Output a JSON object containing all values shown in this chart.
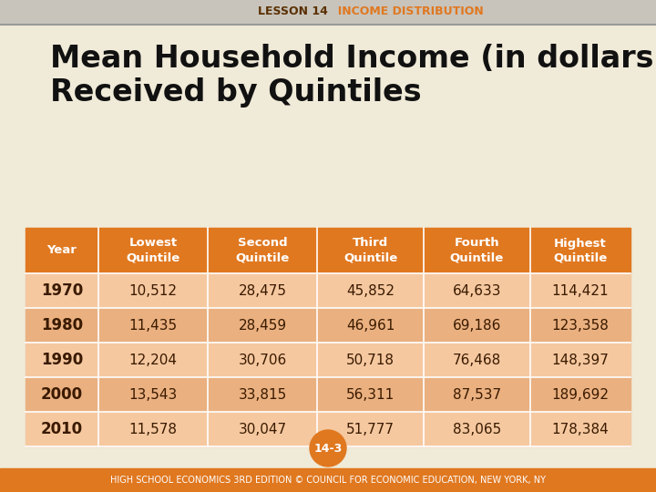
{
  "lesson_label": "LESSON 14",
  "lesson_topic": "  INCOME DISTRIBUTION",
  "title_line1": "Mean Household Income (in dollars)",
  "title_line2": "Received by Quintiles",
  "header_row": [
    "Year",
    "Lowest\nQuintile",
    "Second\nQuintile",
    "Third\nQuintile",
    "Fourth\nQuintile",
    "Highest\nQuintile"
  ],
  "rows": [
    [
      "1970",
      "10,512",
      "28,475",
      "45,852",
      "64,633",
      "114,421"
    ],
    [
      "1980",
      "11,435",
      "28,459",
      "46,961",
      "69,186",
      "123,358"
    ],
    [
      "1990",
      "12,204",
      "30,706",
      "50,718",
      "76,468",
      "148,397"
    ],
    [
      "2000",
      "13,543",
      "33,815",
      "56,311",
      "87,537",
      "189,692"
    ],
    [
      "2010",
      "11,578",
      "30,047",
      "51,777",
      "83,065",
      "178,384"
    ]
  ],
  "header_bg": "#E07820",
  "odd_row_bg": "#F5C8A0",
  "even_row_bg": "#EAB080",
  "header_text_color": "#FFFFFF",
  "year_text_color": "#3A1A00",
  "data_text_color": "#3A1A00",
  "top_bar_bg": "#D4D0C8",
  "top_lesson_color": "#5A3000",
  "top_topic_color": "#E07820",
  "bg_color": "#F0EAD8",
  "footer_bg": "#E07820",
  "footer_text": "HIGH SCHOOL ECONOMICS 3RD EDITION © COUNCIL FOR ECONOMIC EDUCATION, NEW YORK, NY",
  "page_label": "14-3",
  "title_color": "#111111",
  "top_stripe_bg": "#C8C4BC",
  "separator_color": "#999999"
}
